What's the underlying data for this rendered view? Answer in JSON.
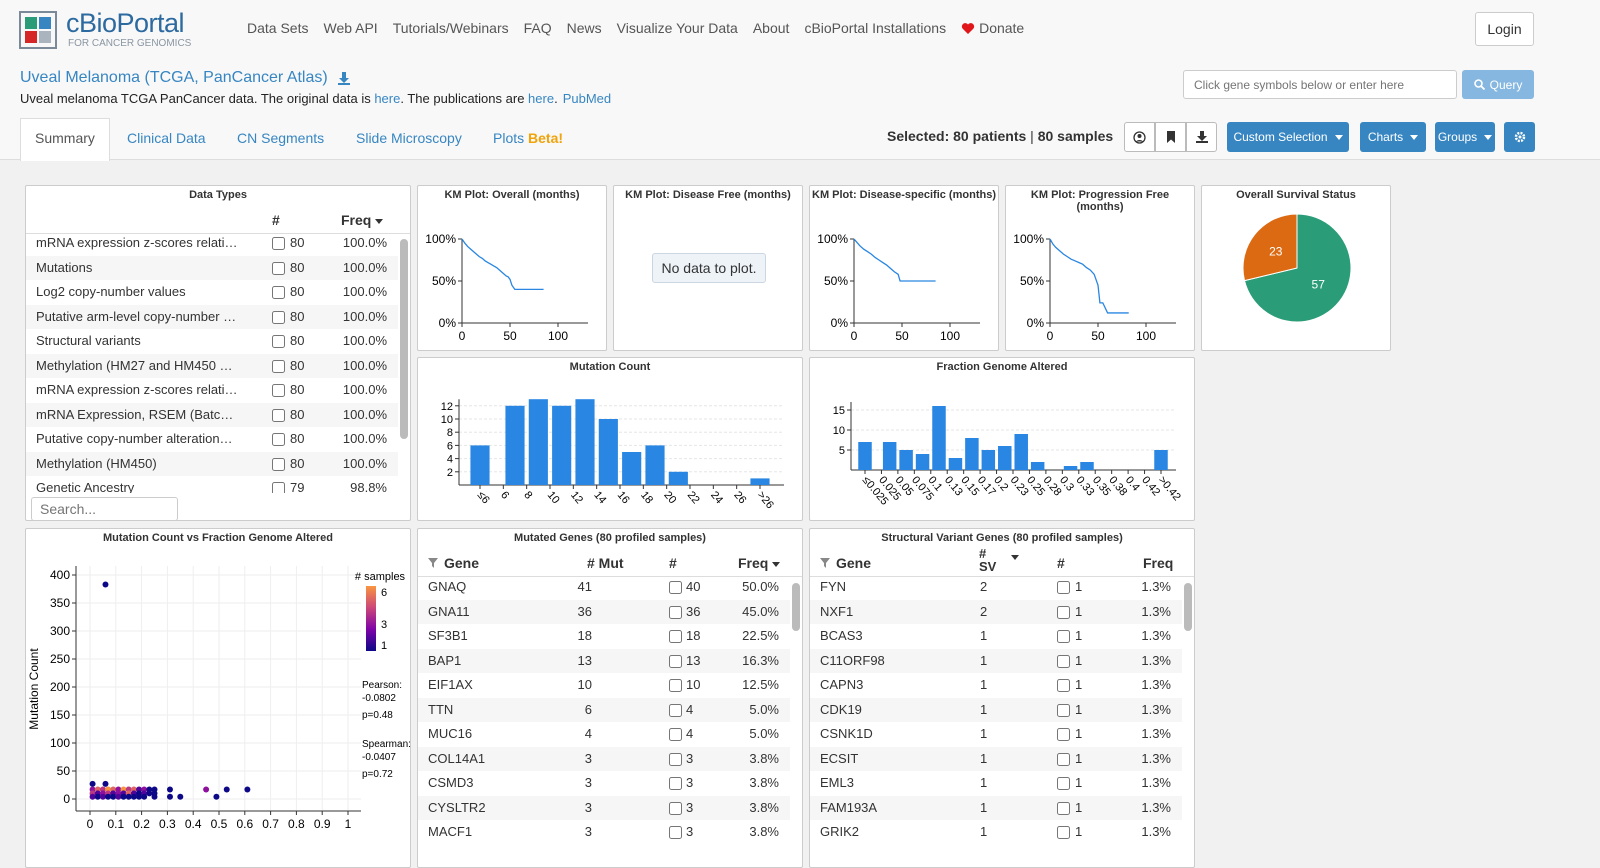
{
  "nav": {
    "logo_title": "cBioPortal",
    "logo_subtitle": "FOR CANCER GENOMICS",
    "links": [
      "Data Sets",
      "Web API",
      "Tutorials/Webinars",
      "FAQ",
      "News",
      "Visualize Your Data",
      "About",
      "cBioPortal Installations",
      "Donate"
    ],
    "login": "Login"
  },
  "study": {
    "title": "Uveal Melanoma (TCGA, PanCancer Atlas)",
    "description": [
      "Uveal melanoma TCGA PanCancer data. The original data is ",
      "here",
      ". The publications are ",
      "here",
      ".",
      "PubMed"
    ]
  },
  "query": {
    "placeholder": "Click gene symbols below or enter here",
    "button": "Query"
  },
  "tabs": [
    "Summary",
    "Clinical Data",
    "CN Segments",
    "Slide Microscopy",
    "Plots"
  ],
  "tab_badge": "Beta!",
  "selection": {
    "label": "Selected:",
    "patients": "80 patients",
    "separator": "|",
    "samples": "80 samples"
  },
  "buttons": [
    "Custom Selection",
    "Charts",
    "Groups"
  ],
  "data_types": {
    "title": "Data Types",
    "headers": {
      "count": "#",
      "freq": "Freq"
    },
    "search_placeholder": "Search...",
    "rows": [
      [
        "mRNA expression z-scores relati…",
        80,
        "100.0%"
      ],
      [
        "Mutations",
        80,
        "100.0%"
      ],
      [
        "Log2 copy-number values",
        80,
        "100.0%"
      ],
      [
        "Putative arm-level copy-number …",
        80,
        "100.0%"
      ],
      [
        "Structural variants",
        80,
        "100.0%"
      ],
      [
        "Methylation (HM27 and HM450 …",
        80,
        "100.0%"
      ],
      [
        "mRNA expression z-scores relati…",
        80,
        "100.0%"
      ],
      [
        "mRNA Expression, RSEM (Batc…",
        80,
        "100.0%"
      ],
      [
        "Putative copy-number alteration…",
        80,
        "100.0%"
      ],
      [
        "Methylation (HM450)",
        80,
        "100.0%"
      ],
      [
        "Genetic Ancestry",
        79,
        "98.8%"
      ]
    ]
  },
  "km_plots": [
    {
      "title": "KM Plot: Overall (months)",
      "color": "#2986e2",
      "xlim": [
        0,
        130
      ],
      "xticks": [
        0,
        50,
        100
      ],
      "ylim": [
        0,
        100
      ],
      "yticks": [
        {
          "value": 0,
          "label": "0%"
        },
        {
          "value": 50,
          "label": "50%"
        },
        {
          "value": 100,
          "label": "100%"
        }
      ],
      "x": [
        0,
        3,
        6,
        9,
        12,
        15,
        18,
        21,
        24,
        27,
        30,
        33,
        36,
        40,
        44,
        46,
        48,
        50,
        52,
        55,
        60,
        70,
        85
      ],
      "y": [
        100,
        95,
        91,
        88,
        85,
        82,
        79,
        77,
        74,
        72,
        70,
        68,
        66,
        62,
        58,
        56,
        55,
        52,
        45,
        40,
        40,
        40,
        40
      ]
    },
    {
      "title": "KM Plot: Disease Free (months)",
      "message": "No data to plot."
    },
    {
      "title": "KM Plot: Disease-specific (months)",
      "color": "#2986e2",
      "xlim": [
        0,
        130
      ],
      "xticks": [
        0,
        50,
        100
      ],
      "ylim": [
        0,
        100
      ],
      "yticks": [
        {
          "value": 0,
          "label": "0%"
        },
        {
          "value": 50,
          "label": "50%"
        },
        {
          "value": 100,
          "label": "100%"
        }
      ],
      "x": [
        0,
        3,
        6,
        10,
        14,
        18,
        22,
        26,
        30,
        34,
        38,
        42,
        46,
        48,
        85
      ],
      "y": [
        100,
        96,
        92,
        88,
        85,
        82,
        78,
        75,
        72,
        69,
        65,
        61,
        58,
        50,
        50
      ]
    },
    {
      "title": "KM Plot: Progression Free (months)",
      "color": "#2986e2",
      "xlim": [
        0,
        130
      ],
      "xticks": [
        0,
        50,
        100
      ],
      "ylim": [
        0,
        100
      ],
      "yticks": [
        {
          "value": 0,
          "label": "0%"
        },
        {
          "value": 50,
          "label": "50%"
        },
        {
          "value": 100,
          "label": "100%"
        }
      ],
      "x": [
        0,
        3,
        6,
        10,
        14,
        18,
        22,
        26,
        30,
        34,
        38,
        42,
        46,
        50,
        52,
        55,
        60,
        82
      ],
      "y": [
        100,
        94,
        90,
        86,
        82,
        79,
        76,
        74,
        72,
        70,
        66,
        63,
        58,
        45,
        24,
        24,
        12,
        12
      ]
    }
  ],
  "survival_status": {
    "title": "Overall Survival Status",
    "values": [
      57,
      23
    ],
    "colors": [
      "#2a9d78",
      "#dc6a12"
    ]
  },
  "mutation_count": {
    "title": "Mutation Count",
    "color": "#2986e2",
    "ylim": [
      0,
      13
    ],
    "yticks": [
      2,
      4,
      6,
      8,
      10,
      12
    ],
    "x_labels": [
      "≤6",
      "6",
      "8",
      "10",
      "12",
      "14",
      "16",
      "18",
      "20",
      "22",
      "24",
      "26",
      ">26"
    ],
    "counts": [
      6,
      12,
      13,
      12,
      13,
      10,
      5,
      6,
      2,
      0,
      0,
      1
    ]
  },
  "fraction_genome_altered": {
    "title": "Fraction Genome Altered",
    "color": "#2986e2",
    "ylim": [
      0,
      17
    ],
    "yticks": [
      5,
      10,
      15
    ],
    "x_labels": [
      "≤0.025",
      "0.025",
      "0.05",
      "0.075",
      "0.1",
      "0.13",
      "0.15",
      "0.17",
      "0.2",
      "0.23",
      "0.25",
      "0.28",
      "0.3",
      "0.33",
      "0.35",
      "0.38",
      "0.4",
      "0.42",
      ">0.42"
    ],
    "counts": [
      7,
      7,
      5,
      4,
      16,
      3,
      8,
      5,
      6,
      9,
      2,
      0,
      1,
      2,
      0,
      0,
      0,
      5
    ]
  },
  "scatter": {
    "title": "Mutation Count vs Fraction Genome Altered",
    "y_label": "Mutation Count",
    "xlim": [
      -0.05,
      1.05
    ],
    "ylim": [
      -20,
      415
    ],
    "xticks": [
      0,
      0.1,
      0.2,
      0.3,
      0.4,
      0.5,
      0.6,
      0.7,
      0.8,
      0.9,
      1
    ],
    "yticks": [
      0,
      50,
      100,
      150,
      200,
      250,
      300,
      350,
      400
    ],
    "legend_title": "# samples",
    "legend_ticks": [
      6,
      3,
      1
    ],
    "color_scale": [
      "#0d0887",
      "#7e03a8",
      "#cc4778",
      "#f89540"
    ],
    "correlation": [
      "Pearson:",
      "-0.0802",
      "p=0.48",
      "Spearman:",
      "-0.0407",
      "p=0.72"
    ],
    "x": [
      0.06,
      0.01,
      0.06,
      0.01,
      0.03,
      0.05,
      0.07,
      0.09,
      0.11,
      0.13,
      0.15,
      0.17,
      0.19,
      0.21,
      0.23,
      0.25,
      0.31,
      0.45,
      0.53,
      0.61,
      0.01,
      0.03,
      0.05,
      0.07,
      0.09,
      0.11,
      0.13,
      0.15,
      0.17,
      0.19,
      0.21,
      0.23,
      0.25,
      0.01,
      0.03,
      0.05,
      0.07,
      0.09,
      0.11,
      0.13,
      0.15,
      0.17,
      0.19,
      0.21,
      0.25,
      0.31,
      0.35,
      0.49
    ],
    "y": [
      383,
      27,
      27,
      17,
      17,
      17,
      17,
      17,
      17,
      17,
      17,
      17,
      17,
      17,
      17,
      17,
      17,
      17,
      17,
      17,
      10,
      10,
      10,
      10,
      10,
      10,
      10,
      10,
      10,
      10,
      10,
      10,
      10,
      4,
      4,
      4,
      4,
      4,
      4,
      4,
      4,
      4,
      4,
      4,
      4,
      4,
      4,
      4
    ],
    "samples": [
      1,
      1,
      1,
      3,
      5,
      4,
      6,
      5,
      3,
      6,
      4,
      5,
      2,
      3,
      1,
      1,
      1,
      3,
      1,
      1,
      4,
      2,
      3,
      4,
      2,
      3,
      2,
      5,
      2,
      1,
      2,
      1,
      1,
      2,
      1,
      2,
      1,
      1,
      2,
      1,
      1,
      1,
      1,
      1,
      1,
      1,
      1,
      1
    ]
  },
  "mutated_genes": {
    "title": "Mutated Genes (80 profiled samples)",
    "headers": {
      "gene": "Gene",
      "mut": "# Mut",
      "count": "#",
      "freq": "Freq"
    },
    "rows": [
      [
        "GNAQ",
        41,
        40,
        "50.0%"
      ],
      [
        "GNA11",
        36,
        36,
        "45.0%"
      ],
      [
        "SF3B1",
        18,
        18,
        "22.5%"
      ],
      [
        "BAP1",
        13,
        13,
        "16.3%"
      ],
      [
        "EIF1AX",
        10,
        10,
        "12.5%"
      ],
      [
        "TTN",
        6,
        4,
        "5.0%"
      ],
      [
        "MUC16",
        4,
        4,
        "5.0%"
      ],
      [
        "COL14A1",
        3,
        3,
        "3.8%"
      ],
      [
        "CSMD3",
        3,
        3,
        "3.8%"
      ],
      [
        "CYSLTR2",
        3,
        3,
        "3.8%"
      ],
      [
        "MACF1",
        3,
        3,
        "3.8%"
      ]
    ]
  },
  "sv_genes": {
    "title": "Structural Variant Genes (80 profiled samples)",
    "headers": {
      "gene": "Gene",
      "sv": "# SV",
      "count": "#",
      "freq": "Freq"
    },
    "rows": [
      [
        "FYN",
        2,
        1,
        "1.3%"
      ],
      [
        "NXF1",
        2,
        1,
        "1.3%"
      ],
      [
        "BCAS3",
        1,
        1,
        "1.3%"
      ],
      [
        "C11ORF98",
        1,
        1,
        "1.3%"
      ],
      [
        "CAPN3",
        1,
        1,
        "1.3%"
      ],
      [
        "CDK19",
        1,
        1,
        "1.3%"
      ],
      [
        "CSNK1D",
        1,
        1,
        "1.3%"
      ],
      [
        "ECSIT",
        1,
        1,
        "1.3%"
      ],
      [
        "EML3",
        1,
        1,
        "1.3%"
      ],
      [
        "FAM193A",
        1,
        1,
        "1.3%"
      ],
      [
        "GRIK2",
        1,
        1,
        "1.3%"
      ]
    ]
  }
}
